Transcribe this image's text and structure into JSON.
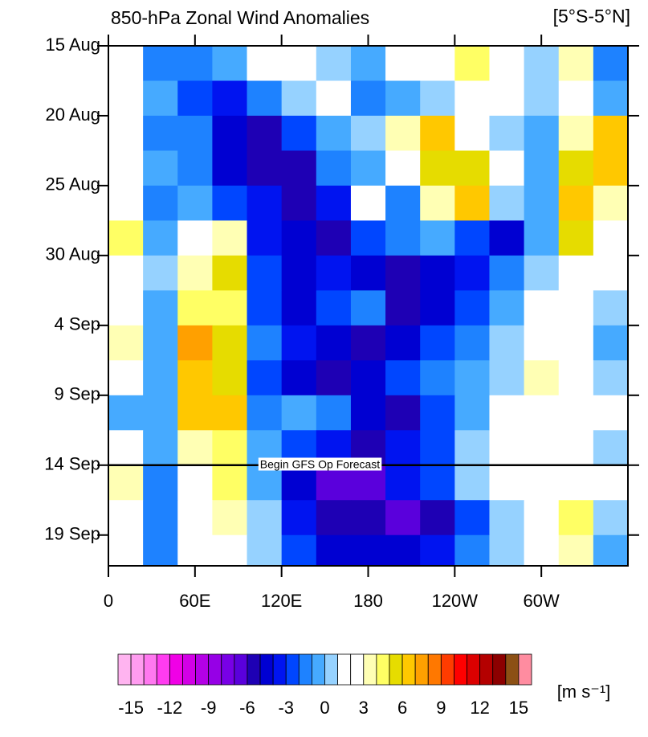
{
  "chart_data": {
    "type": "heatmap",
    "title": "850-hPa Zonal Wind Anomalies",
    "subtitle": "[5°S-5°N]",
    "units": "[m s⁻¹]",
    "xlim": [
      0,
      360
    ],
    "xticks": [
      0,
      {
        "value": 60,
        "label": "60E"
      },
      {
        "value": 120,
        "label": "120E"
      },
      180,
      {
        "value": 240,
        "label": "120W"
      },
      {
        "value": 300,
        "label": "60W"
      }
    ],
    "ylim": [
      0,
      37.2
    ],
    "yticks": [
      {
        "value": 0,
        "label": "15 Aug"
      },
      {
        "value": 5,
        "label": "20 Aug"
      },
      {
        "value": 10,
        "label": "25 Aug"
      },
      {
        "value": 15,
        "label": "30 Aug"
      },
      {
        "value": 20,
        "label": "4 Sep"
      },
      {
        "value": 25,
        "label": "9 Sep"
      },
      {
        "value": 30,
        "label": "14 Sep"
      },
      {
        "value": 35,
        "label": "19 Sep"
      }
    ],
    "x": [
      12,
      36,
      60,
      84,
      108,
      132,
      156,
      180,
      204,
      228,
      252,
      276,
      300,
      324,
      348
    ],
    "y": [
      1.25,
      3.75,
      6.25,
      8.75,
      11.25,
      13.75,
      16.25,
      18.75,
      21.25,
      23.75,
      26.25,
      28.75,
      31.25,
      33.75,
      36.25
    ],
    "z": [
      [
        1,
        -2,
        -2,
        -1,
        1,
        2,
        0,
        -1,
        1,
        2,
        4,
        2,
        0,
        3,
        -2
      ],
      [
        1,
        -1,
        -3,
        -4,
        -2,
        0,
        1,
        -2,
        -1,
        0,
        2,
        1,
        0,
        1,
        -1
      ],
      [
        2,
        -2,
        -2,
        -5,
        -6,
        -3,
        -1,
        0,
        3,
        6,
        2,
        0,
        -1,
        3,
        6
      ],
      [
        1,
        -1,
        -2,
        -5,
        -6,
        -6,
        -2,
        -1,
        2,
        5,
        5,
        1,
        -1,
        5,
        6
      ],
      [
        1,
        -2,
        -1,
        -3,
        -4,
        -6,
        -4,
        1,
        -2,
        3,
        6,
        0,
        -1,
        6,
        3
      ],
      [
        4,
        -1,
        2,
        3,
        -4,
        -5,
        -6,
        -3,
        -2,
        -1,
        -3,
        -5,
        -1,
        5,
        1
      ],
      [
        1,
        0,
        3,
        5,
        -3,
        -5,
        -4,
        -5,
        -6,
        -5,
        -4,
        -2,
        0,
        2,
        1
      ],
      [
        2,
        -1,
        4,
        4,
        -3,
        -5,
        -3,
        -2,
        -6,
        -5,
        -3,
        -1,
        1,
        1,
        0
      ],
      [
        3,
        -1,
        7,
        5,
        -2,
        -4,
        -5,
        -6,
        -5,
        -3,
        -2,
        0,
        2,
        1,
        -1
      ],
      [
        2,
        -1,
        6,
        5,
        -3,
        -5,
        -6,
        -5,
        -3,
        -2,
        -1,
        0,
        3,
        1,
        0
      ],
      [
        -1,
        -1,
        6,
        6,
        -2,
        -1,
        -2,
        -5,
        -6,
        -3,
        -1,
        1,
        2,
        1,
        2
      ],
      [
        1,
        -1,
        3,
        4,
        -1,
        -3,
        -4,
        -6,
        -4,
        -3,
        0,
        1,
        1,
        1,
        0
      ],
      [
        3,
        -2,
        1,
        4,
        -1,
        -5,
        -7,
        -7,
        -4,
        -3,
        0,
        1,
        2,
        2,
        1
      ],
      [
        2,
        -2,
        1,
        3,
        0,
        -4,
        -6,
        -6,
        -7,
        -6,
        -3,
        0,
        2,
        4,
        0
      ],
      [
        2,
        -2,
        2,
        1,
        0,
        -3,
        -5,
        -5,
        -5,
        -4,
        -2,
        0,
        1,
        3,
        -1
      ]
    ],
    "annotation": {
      "text": "Begin GFS Op Forecast",
      "y": 30
    },
    "colorbar": {
      "levels": [
        -15,
        -12,
        -9,
        -6,
        -3,
        0,
        3,
        6,
        9,
        12,
        15
      ],
      "colors": [
        "#ffb4f0",
        "#ff9cf0",
        "#ff78f0",
        "#ff3cf0",
        "#f000e6",
        "#d200e6",
        "#b400e6",
        "#9600e6",
        "#7800e6",
        "#5a00dc",
        "#1e00b4",
        "#0000d2",
        "#0014f0",
        "#0046ff",
        "#1e82ff",
        "#46aaff",
        "#96d2ff",
        "#ffffff",
        "#ffffff",
        "#ffffb4",
        "#ffff64",
        "#e6dc00",
        "#ffc800",
        "#ffa000",
        "#ff7800",
        "#ff3c00",
        "#ff0000",
        "#dc0000",
        "#b40000",
        "#8c0000",
        "#8c5014",
        "#ff8ca0"
      ]
    }
  }
}
